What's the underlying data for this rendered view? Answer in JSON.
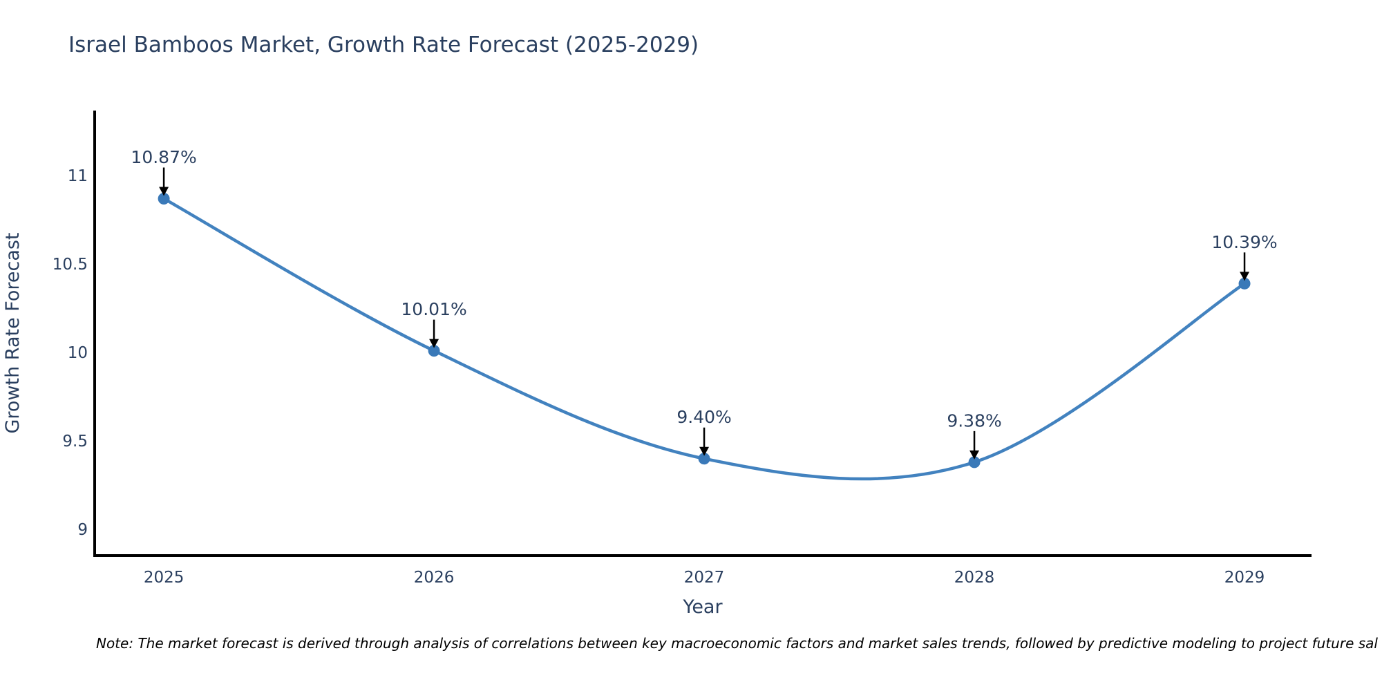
{
  "chart_data": {
    "type": "line",
    "line_shape": "spline",
    "title": "Israel Bamboos Market, Growth Rate Forecast (2025-2029)",
    "xlabel": "Year",
    "ylabel": "Growth Rate Forecast",
    "x": [
      2025,
      2026,
      2027,
      2028,
      2029
    ],
    "xtick_labels": [
      "2025",
      "2026",
      "2027",
      "2028",
      "2029"
    ],
    "values": [
      10.87,
      10.01,
      9.4,
      9.38,
      10.39
    ],
    "point_labels": [
      "10.87%",
      "10.01%",
      "9.40%",
      "9.38%",
      "10.39%"
    ],
    "yticks": [
      9,
      9.5,
      10,
      10.5,
      11
    ],
    "ytick_labels": [
      "9",
      "9.5",
      "10",
      "10.5",
      "11"
    ],
    "ylim": [
      8.852,
      11.368
    ],
    "xlim": [
      2024.744,
      2029.248
    ],
    "grid": false,
    "legend": false,
    "colors": {
      "line": "#4282bf",
      "marker": "#3a79b8",
      "axis": "#000000",
      "text": "#2a3f5f",
      "annotation_arrow": "#000000",
      "note_text": "#000000",
      "background": "#ffffff"
    }
  },
  "note": {
    "text": "Note: The market forecast is derived through analysis of correlations between key macroeconomic factors and market sales trends, followed by predictive modeling to project future sal"
  }
}
